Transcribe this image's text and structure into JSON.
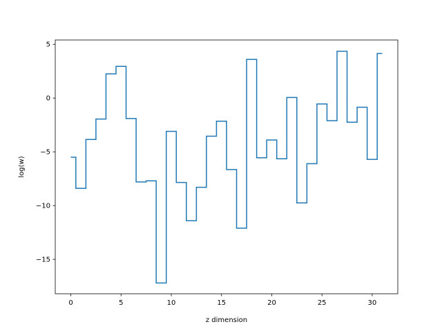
{
  "chart_data": {
    "type": "line",
    "drawstyle": "steps-mid",
    "xlabel": "z dimension",
    "ylabel": "log(w)",
    "xlim": [
      -1.55,
      32.55
    ],
    "ylim": [
      -18.2,
      5.4
    ],
    "xticks": [
      0,
      5,
      10,
      15,
      20,
      25,
      30
    ],
    "yticks": [
      -15,
      -10,
      -5,
      0,
      5
    ],
    "ytick_labels": [
      "−15",
      "−10",
      "−5",
      "0",
      "5"
    ],
    "grid": false,
    "series": [
      {
        "color": "#1f77b4",
        "x": [
          0,
          1,
          2,
          3,
          4,
          5,
          6,
          7,
          8,
          9,
          10,
          11,
          12,
          13,
          14,
          15,
          16,
          17,
          18,
          19,
          20,
          21,
          22,
          23,
          24,
          25,
          26,
          27,
          28,
          29,
          30,
          31
        ],
        "values": [
          -5.5,
          -8.4,
          -3.85,
          -1.95,
          2.25,
          2.95,
          -1.9,
          -7.8,
          -7.7,
          -17.2,
          -3.1,
          -7.85,
          -11.4,
          -8.3,
          -3.55,
          -2.15,
          -6.65,
          -12.1,
          3.6,
          -5.55,
          -3.9,
          -5.65,
          0.05,
          -9.75,
          -6.1,
          -0.55,
          -2.1,
          4.35,
          -2.25,
          -0.85,
          -5.7,
          4.15
        ]
      }
    ]
  }
}
